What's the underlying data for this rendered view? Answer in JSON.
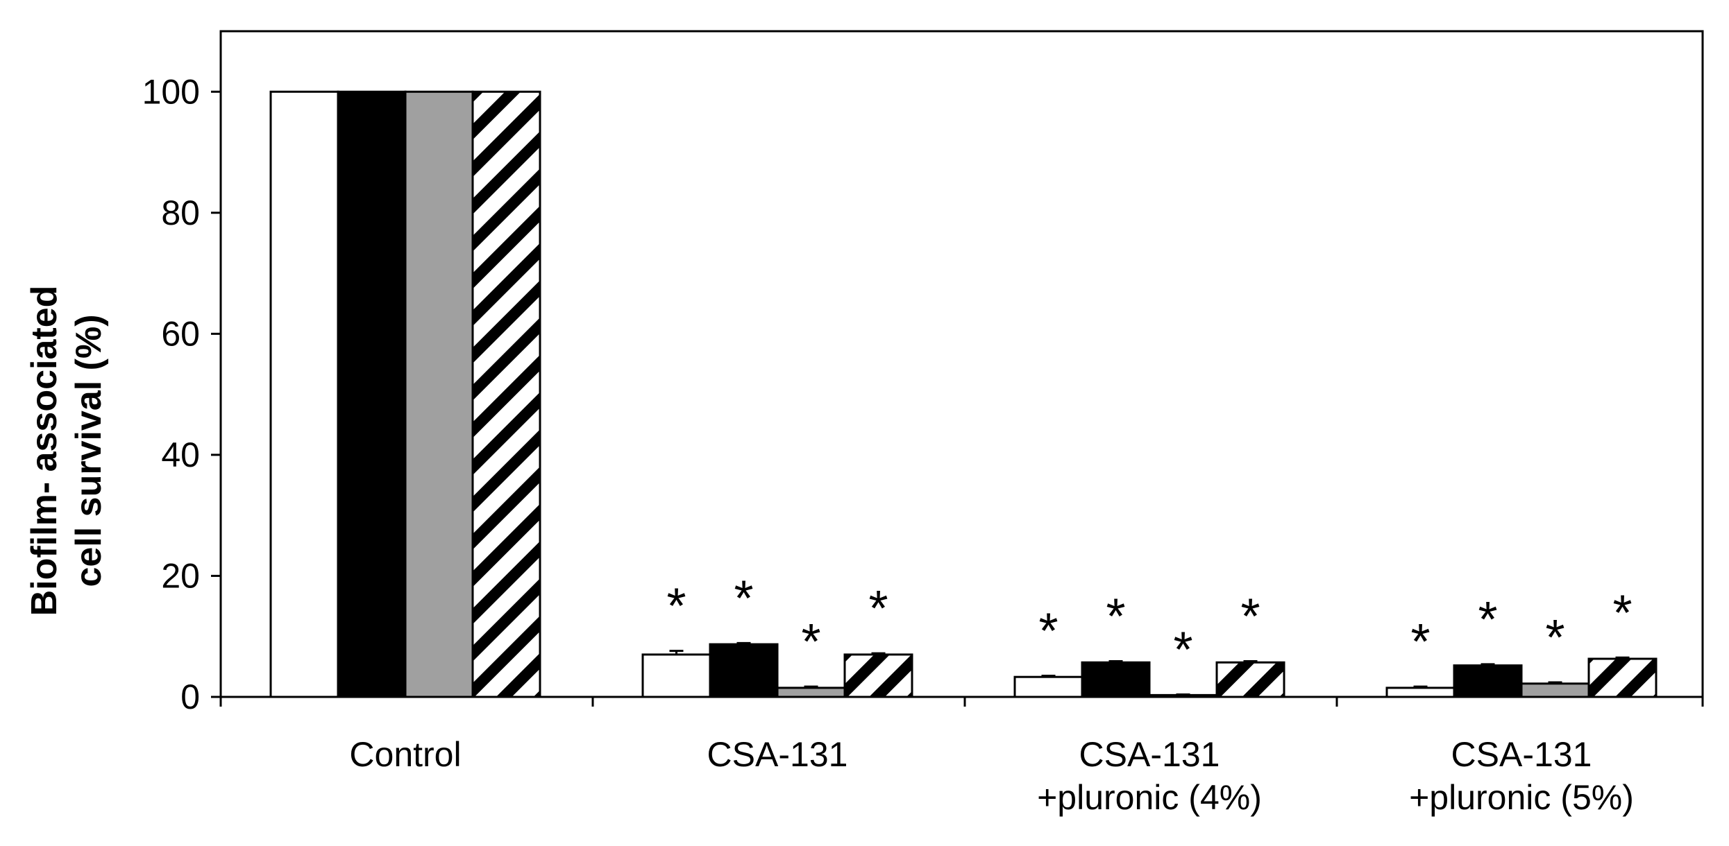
{
  "chart_data": {
    "type": "bar",
    "title": "",
    "xlabel": "",
    "ylabel": [
      "Biofilm- associated",
      "cell survival (%)"
    ],
    "ylim": [
      0,
      100
    ],
    "y_max_axis": 110,
    "yticks": [
      0,
      20,
      40,
      60,
      80,
      100
    ],
    "categories": [
      [
        "Control"
      ],
      [
        "CSA-131"
      ],
      [
        "CSA-131",
        "+pluronic (4%)"
      ],
      [
        "CSA-131",
        "+pluronic (5%)"
      ]
    ],
    "series": [
      {
        "fill": "white",
        "values": [
          100,
          7.0,
          3.3,
          1.5
        ],
        "errors": [
          0,
          0.6,
          0.2,
          0.2
        ],
        "significance": [
          "",
          "*",
          "*",
          "*"
        ]
      },
      {
        "fill": "black",
        "values": [
          100,
          8.7,
          5.7,
          5.2
        ],
        "errors": [
          0,
          0.2,
          0.2,
          0.2
        ],
        "significance": [
          "",
          "*",
          "*",
          "*"
        ]
      },
      {
        "fill": "gray",
        "values": [
          100,
          1.5,
          0.3,
          2.2
        ],
        "errors": [
          0,
          0.2,
          0.1,
          0.2
        ],
        "significance": [
          "",
          "*",
          "*",
          "*"
        ]
      },
      {
        "fill": "diagonal-hatch",
        "values": [
          100,
          7.0,
          5.7,
          6.3
        ],
        "errors": [
          0,
          0.2,
          0.2,
          0.2
        ],
        "significance": [
          "",
          "*",
          "*",
          "*"
        ]
      }
    ],
    "colors": {
      "white": "#ffffff",
      "black": "#000000",
      "gray": "#a0a0a0",
      "stroke": "#000000"
    },
    "grid": false,
    "legend": "none"
  }
}
